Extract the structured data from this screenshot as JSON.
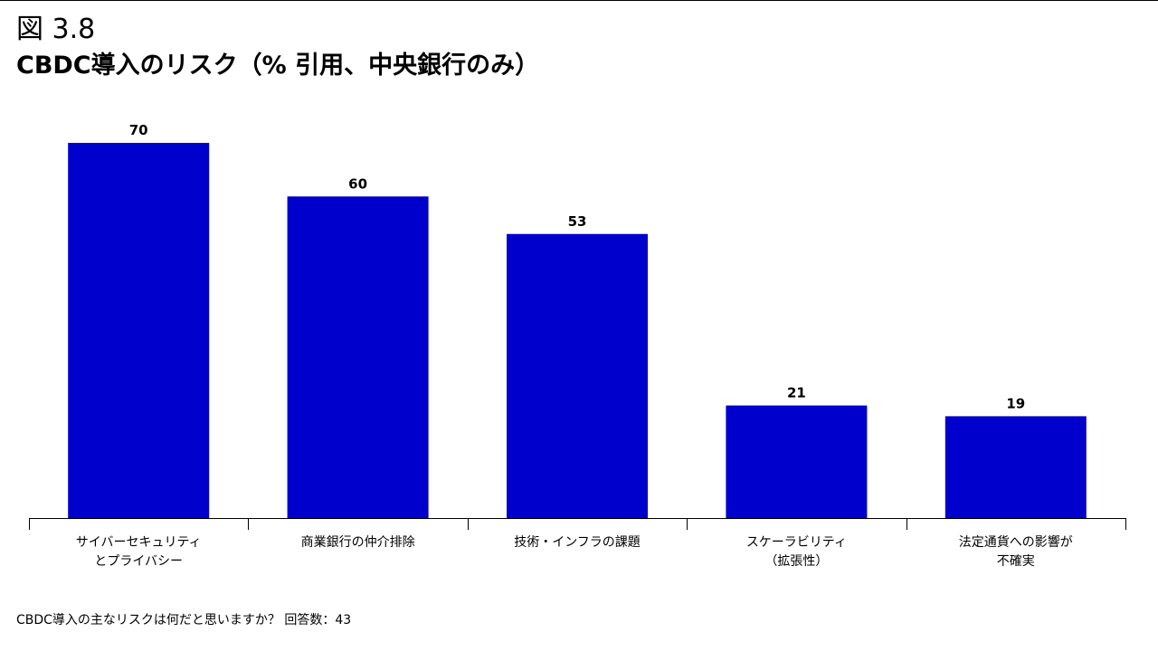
{
  "figure": {
    "label": "図 3.8",
    "title": "CBDC導入のリスク（% 引用、中央銀行のみ）"
  },
  "chart_data": {
    "type": "bar",
    "title": "CBDC導入のリスク（% 引用、中央銀行のみ）",
    "xlabel": "",
    "ylabel": "",
    "ylim": [
      0,
      70
    ],
    "grid": false,
    "legend": "none",
    "bar_color": "#0000CC",
    "categories": [
      [
        "サイバーセキュリティ",
        "とプライバシー"
      ],
      [
        "商業銀行の仲介排除"
      ],
      [
        "技術・インフラの課題"
      ],
      [
        "スケーラビリティ",
        "（拡張性）"
      ],
      [
        "法定通貨への影響が",
        "不確実"
      ]
    ],
    "values": [
      70,
      60,
      53,
      21,
      19
    ]
  },
  "footnote": "CBDC導入の主なリスクは何だと思いますか？ 回答数：43"
}
